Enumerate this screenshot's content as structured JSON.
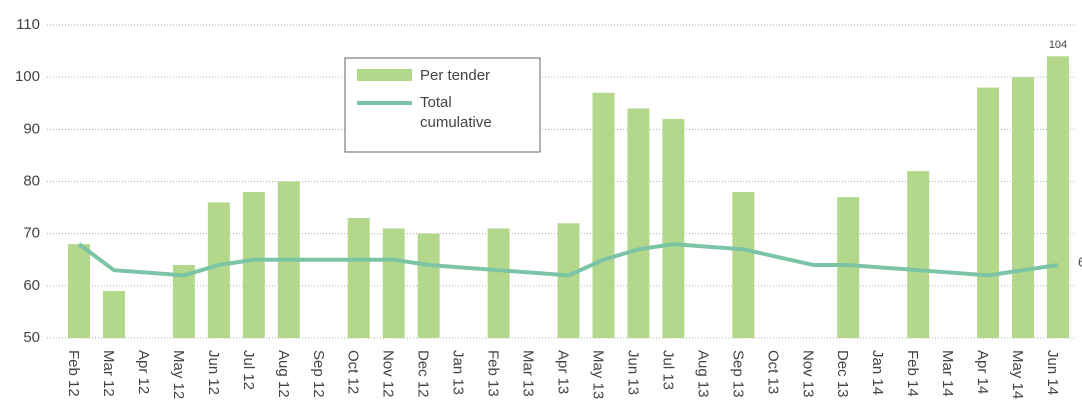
{
  "chart_data": {
    "type": "bar_line",
    "categories": [
      "Feb 12",
      "Mar 12",
      "Apr 12",
      "May 12",
      "Jun 12",
      "Jul 12",
      "Aug 12",
      "Sep 12",
      "Oct 12",
      "Nov 12",
      "Dec 12",
      "Jan 13",
      "Feb 13",
      "Mar 13",
      "Apr 13",
      "May 13",
      "Jun 13",
      "Jul 13",
      "Aug 13",
      "Sep 13",
      "Oct 13",
      "Nov 13",
      "Dec 13",
      "Jan 14",
      "Feb 14",
      "Mar 14",
      "Apr 14",
      "May 14",
      "Jun 14"
    ],
    "series": [
      {
        "name": "Per tender",
        "type": "bar",
        "color": "#b3d88c",
        "values": [
          68,
          59,
          null,
          64,
          76,
          78,
          80,
          null,
          73,
          71,
          70,
          null,
          71,
          null,
          72,
          97,
          94,
          92,
          null,
          78,
          null,
          null,
          77,
          null,
          82,
          null,
          98,
          100,
          104
        ]
      },
      {
        "name": "Total cumulative",
        "type": "line",
        "color": "#7cc4a6",
        "values": [
          68,
          63,
          62.5,
          62,
          64,
          65,
          65,
          65,
          65,
          65,
          64,
          63.5,
          63,
          62.5,
          62,
          65,
          67,
          68,
          67.5,
          67,
          65.5,
          64,
          64,
          63.5,
          63,
          62.5,
          62,
          63,
          64
        ]
      }
    ],
    "ylim": [
      50,
      110
    ],
    "yticks": [
      50,
      60,
      70,
      80,
      90,
      100,
      110
    ],
    "grid": true,
    "legend": "top-center"
  }
}
